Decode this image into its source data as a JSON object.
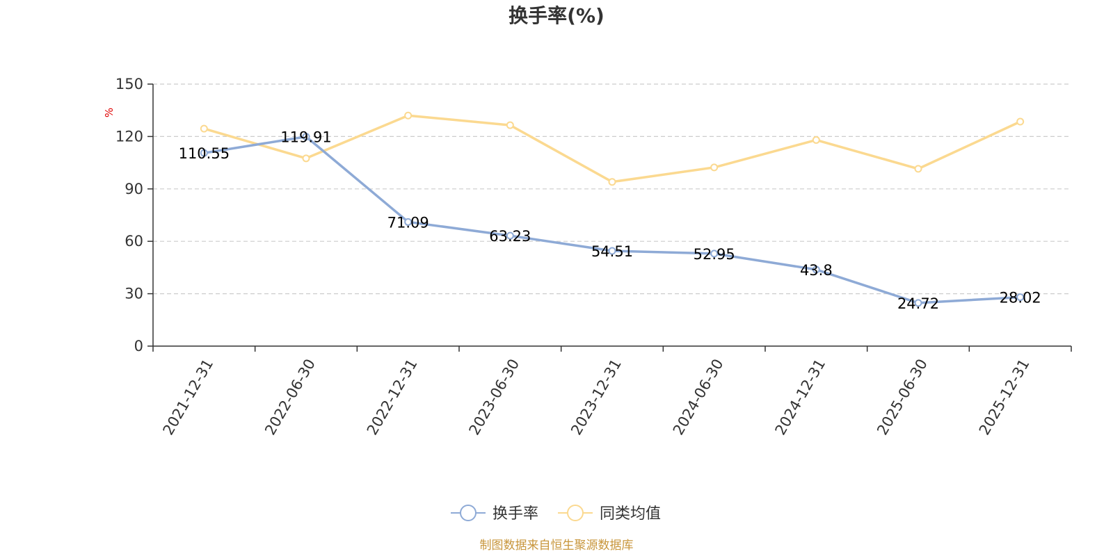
{
  "chart_data": {
    "type": "line",
    "title": "换手率(%)",
    "ylabel": "%",
    "xlabel": "",
    "ylim": [
      0,
      150
    ],
    "yticks": [
      0,
      30,
      60,
      90,
      120,
      150
    ],
    "grid": true,
    "legend_position": "bottom-center",
    "categories": [
      "2021-12-31",
      "2022-06-30",
      "2022-12-31",
      "2023-06-30",
      "2023-12-31",
      "2024-06-30",
      "2024-12-31",
      "2025-06-30",
      "2025-12-31"
    ],
    "series": [
      {
        "name": "换手率",
        "color": "#8eaad6",
        "values": [
          110.55,
          119.91,
          71.09,
          63.23,
          54.51,
          52.95,
          43.8,
          24.72,
          28.02
        ],
        "labels": [
          "110.55",
          "119.91",
          "71.09",
          "63.23",
          "54.51",
          "52.95",
          "43.8",
          "24.72",
          "28.02"
        ]
      },
      {
        "name": "同类均值",
        "color": "#fbd990",
        "values": [
          124.5,
          107.5,
          132.0,
          126.5,
          94.0,
          102.3,
          118.0,
          101.5,
          128.5
        ]
      }
    ],
    "colors": {
      "axis": "#333333",
      "grid": "#cccccc",
      "unit": "#e00000",
      "footer": "#c8963c"
    }
  },
  "footer": {
    "source_text": "制图数据来自恒生聚源数据库"
  }
}
